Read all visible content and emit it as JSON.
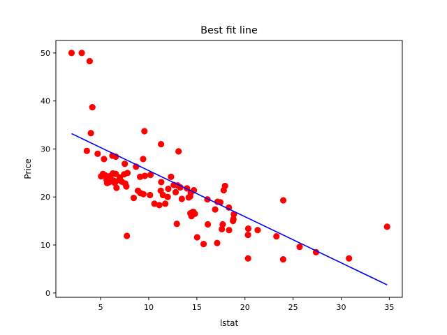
{
  "chart_data": {
    "type": "scatter",
    "title": "Best fit line",
    "xlabel": "lstat",
    "ylabel": "Price",
    "xlim": [
      0.35,
      36.35
    ],
    "ylim": [
      -0.9,
      52.6
    ],
    "xticks": [
      5,
      10,
      15,
      20,
      25,
      30,
      35
    ],
    "yticks": [
      0,
      10,
      20,
      30,
      40,
      50
    ],
    "grid": false,
    "legend": "none",
    "colors": {
      "points": "#ff0000",
      "line": "#0000ff",
      "axes": "#000000",
      "background": "#ffffff"
    },
    "series": [
      {
        "kind": "points",
        "points": [
          [
            1.98,
            50.0
          ],
          [
            3.04,
            50.0
          ],
          [
            3.86,
            48.3
          ],
          [
            4.14,
            38.7
          ],
          [
            3.99,
            33.3
          ],
          [
            3.57,
            29.6
          ],
          [
            4.69,
            29.0
          ],
          [
            5.35,
            27.9
          ],
          [
            6.23,
            28.6
          ],
          [
            6.58,
            28.4
          ],
          [
            7.51,
            26.9
          ],
          [
            8.68,
            26.3
          ],
          [
            9.55,
            33.7
          ],
          [
            9.42,
            27.9
          ],
          [
            11.28,
            31.0
          ],
          [
            13.1,
            29.5
          ],
          [
            9.1,
            24.2
          ],
          [
            10.18,
            24.6
          ],
          [
            11.3,
            23.1
          ],
          [
            12.32,
            24.2
          ],
          [
            13.28,
            22.0
          ],
          [
            14.37,
            20.9
          ],
          [
            5.05,
            24.3
          ],
          [
            5.24,
            24.8
          ],
          [
            5.49,
            24.5
          ],
          [
            5.62,
            23.6
          ],
          [
            5.68,
            22.9
          ],
          [
            5.91,
            23.1
          ],
          [
            6.02,
            24.4
          ],
          [
            6.27,
            24.9
          ],
          [
            6.36,
            23.4
          ],
          [
            6.48,
            22.9
          ],
          [
            6.57,
            24.8
          ],
          [
            6.65,
            21.9
          ],
          [
            6.92,
            23.5
          ],
          [
            7.0,
            24.1
          ],
          [
            7.2,
            23.2
          ],
          [
            7.44,
            24.7
          ],
          [
            7.56,
            22.8
          ],
          [
            7.67,
            22.2
          ],
          [
            7.79,
            25.0
          ],
          [
            8.44,
            19.8
          ],
          [
            8.88,
            21.3
          ],
          [
            9.14,
            20.8
          ],
          [
            9.45,
            20.6
          ],
          [
            9.59,
            24.4
          ],
          [
            10.13,
            20.4
          ],
          [
            10.59,
            18.6
          ],
          [
            11.1,
            18.3
          ],
          [
            11.25,
            21.3
          ],
          [
            11.48,
            20.4
          ],
          [
            11.72,
            18.6
          ],
          [
            11.97,
            20.0
          ],
          [
            12.03,
            21.7
          ],
          [
            12.6,
            22.5
          ],
          [
            12.8,
            21.0
          ],
          [
            13.0,
            22.4
          ],
          [
            13.44,
            19.6
          ],
          [
            13.98,
            21.8
          ],
          [
            14.15,
            19.9
          ],
          [
            14.3,
            20.1
          ],
          [
            14.69,
            21.4
          ],
          [
            14.33,
            16.6
          ],
          [
            14.44,
            16.0
          ],
          [
            14.59,
            16.9
          ],
          [
            14.64,
            16.9
          ],
          [
            14.79,
            16.5
          ],
          [
            12.92,
            14.4
          ],
          [
            15.03,
            11.6
          ],
          [
            15.7,
            10.2
          ],
          [
            16.14,
            14.3
          ],
          [
            16.1,
            19.5
          ],
          [
            16.9,
            17.4
          ],
          [
            17.15,
            19.0
          ],
          [
            17.44,
            18.9
          ],
          [
            17.6,
            13.3
          ],
          [
            17.69,
            14.3
          ],
          [
            17.79,
            21.4
          ],
          [
            17.93,
            22.3
          ],
          [
            18.33,
            17.8
          ],
          [
            18.35,
            13.1
          ],
          [
            18.76,
            15.0
          ],
          [
            18.8,
            15.4
          ],
          [
            18.85,
            16.4
          ],
          [
            17.11,
            10.4
          ],
          [
            20.34,
            13.4
          ],
          [
            20.31,
            12.1
          ],
          [
            21.32,
            13.1
          ],
          [
            23.27,
            11.8
          ],
          [
            23.98,
            19.3
          ],
          [
            20.32,
            7.2
          ],
          [
            23.97,
            7.0
          ],
          [
            25.68,
            9.6
          ],
          [
            27.38,
            8.5
          ],
          [
            30.81,
            7.2
          ],
          [
            34.77,
            13.8
          ],
          [
            7.73,
            11.9
          ]
        ]
      },
      {
        "kind": "line",
        "x": [
          1.98,
          34.77
        ],
        "y": [
          33.2,
          1.7
        ]
      }
    ]
  }
}
